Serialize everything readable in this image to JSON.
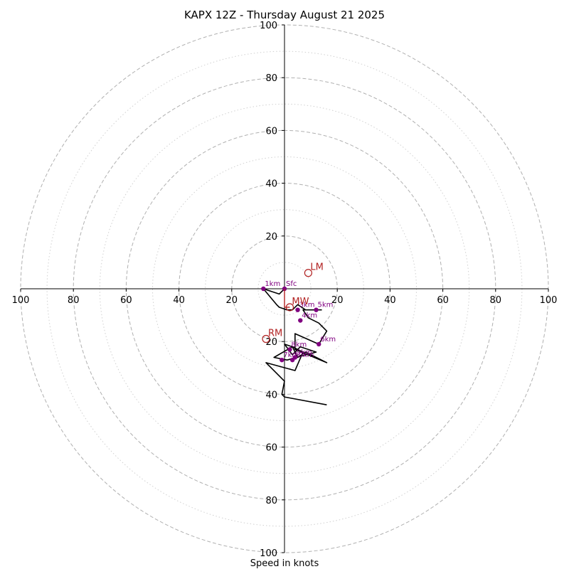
{
  "chart_data": {
    "type": "hodograph",
    "title": "KAPX 12Z - Thursday August 21 2025",
    "xlabel": "Speed in knots",
    "range": [
      -100,
      100
    ],
    "tick_labels": {
      "x": [
        "100",
        "80",
        "60",
        "40",
        "20",
        "20",
        "40",
        "60",
        "80",
        "100"
      ],
      "y_top": [
        "20",
        "40",
        "60",
        "80",
        "100"
      ],
      "y_bottom": [
        "20",
        "40",
        "60",
        "80",
        "100"
      ]
    },
    "major_rings": [
      20,
      40,
      60,
      80,
      100
    ],
    "minor_rings": [
      10,
      30,
      50,
      70,
      90
    ],
    "hodograph": {
      "u": [
        0,
        -2,
        -8,
        -3,
        -2,
        1,
        3,
        5,
        8,
        14,
        7,
        9,
        13,
        16,
        13,
        4,
        4,
        16,
        8,
        5,
        3,
        0,
        3,
        6,
        12,
        1,
        -4,
        3,
        7,
        4,
        -7,
        0,
        -1,
        0,
        16
      ],
      "v": [
        0,
        -2,
        0,
        -6,
        -7,
        -8,
        -8,
        -6,
        -8,
        -8,
        -8,
        -11,
        -13,
        -16,
        -21,
        -17,
        -23,
        -28,
        -24,
        -26,
        -22,
        -21,
        -25,
        -22,
        -24,
        -27,
        -26,
        -22,
        -24,
        -31,
        -28,
        -35,
        -40,
        -41,
        -44
      ]
    },
    "height_markers": [
      {
        "label": "Sfc",
        "u": 0,
        "v": 0
      },
      {
        "label": "1km",
        "u": -8,
        "v": 0
      },
      {
        "label": "3km",
        "u": 5,
        "v": -8
      },
      {
        "label": "4km",
        "u": 6,
        "v": -12
      },
      {
        "label": "5km",
        "u": 12,
        "v": -8
      },
      {
        "label": "6km",
        "u": 13,
        "v": -21
      },
      {
        "label": "7km",
        "u": -1,
        "v": -27
      },
      {
        "label": "8km",
        "u": 2,
        "v": -23
      },
      {
        "label": "9km",
        "u": 4,
        "v": -26
      },
      {
        "label": "10km",
        "u": 3,
        "v": -27
      }
    ],
    "storm_motions": [
      {
        "label": "LM",
        "u": 9,
        "v": 6
      },
      {
        "label": "RM",
        "u": -7,
        "v": -19
      },
      {
        "label": "MW",
        "u": 2,
        "v": -7
      }
    ],
    "bunkers_vector_end": {
      "u": 0,
      "v": -7
    },
    "colors": {
      "hodograph": "#000000",
      "height_marker": "#800080",
      "storm_motion": "#b22222",
      "grid": "#b0b0b0",
      "axes": "#000000"
    }
  }
}
